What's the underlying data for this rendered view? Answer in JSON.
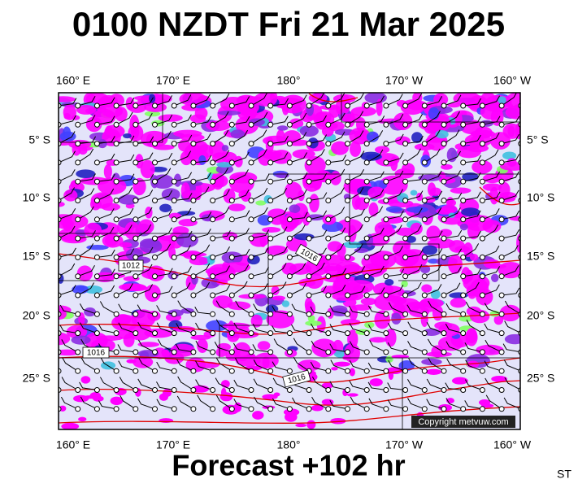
{
  "header": {
    "title": "0100 NZDT Fri 21 Mar 2025"
  },
  "map": {
    "lon_labels": [
      "160° E",
      "170° E",
      "180°",
      "170° W",
      "160° W"
    ],
    "lat_labels": [
      "5° S",
      "10° S",
      "15° S",
      "20° S",
      "25° S"
    ],
    "contour_labels": [
      "1012",
      "1016",
      "1016",
      "1016"
    ],
    "copyright": "Copyright metvuw.com"
  },
  "footer": {
    "forecast": "Forecast +102 hr",
    "code": "ST"
  }
}
